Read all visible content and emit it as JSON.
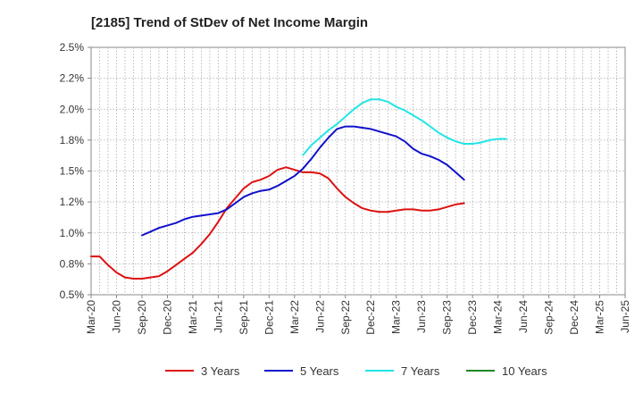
{
  "chart_data": {
    "type": "line",
    "title": "[2185]  Trend of StDev of Net Income Margin",
    "xlabel": "",
    "ylabel": "",
    "x": [
      "Mar-20",
      "Jun-20",
      "Sep-20",
      "Dec-20",
      "Mar-21",
      "Jun-21",
      "Sep-21",
      "Dec-21",
      "Mar-22",
      "Jun-22",
      "Sep-22",
      "Dec-22",
      "Mar-23",
      "Jun-23",
      "Sep-23",
      "Dec-23",
      "Mar-24",
      "Jun-24",
      "Sep-24",
      "Dec-24",
      "Mar-25",
      "Jun-25"
    ],
    "ylim": [
      0.5,
      2.5
    ],
    "yticks": [
      0.5,
      0.75,
      1.0,
      1.25,
      1.5,
      1.75,
      2.0,
      2.25,
      2.5
    ],
    "yticklabels": [
      "0.5%",
      "0.8%",
      "1.0%",
      "1.2%",
      "1.5%",
      "1.8%",
      "2.0%",
      "2.2%",
      "2.5%"
    ],
    "grid": true,
    "legend_position": "bottom",
    "series": [
      {
        "name": "3 Years",
        "color": "#dd1111",
        "points": [
          [
            0,
            0.81
          ],
          [
            1,
            0.81
          ],
          [
            2,
            0.74
          ],
          [
            3,
            0.68
          ],
          [
            4,
            0.64
          ],
          [
            5,
            0.63
          ],
          [
            6,
            0.63
          ],
          [
            7,
            0.64
          ],
          [
            8,
            0.65
          ],
          [
            9,
            0.69
          ],
          [
            10,
            0.74
          ],
          [
            11,
            0.79
          ],
          [
            12,
            0.84
          ],
          [
            13,
            0.91
          ],
          [
            14,
            0.99
          ],
          [
            15,
            1.09
          ],
          [
            16,
            1.2
          ],
          [
            17,
            1.28
          ],
          [
            18,
            1.36
          ],
          [
            19,
            1.41
          ],
          [
            20,
            1.43
          ],
          [
            21,
            1.46
          ],
          [
            22,
            1.51
          ],
          [
            23,
            1.53
          ],
          [
            24,
            1.51
          ],
          [
            25,
            1.49
          ],
          [
            26,
            1.49
          ],
          [
            27,
            1.48
          ],
          [
            28,
            1.44
          ],
          [
            29,
            1.36
          ],
          [
            30,
            1.29
          ],
          [
            31,
            1.24
          ],
          [
            32,
            1.2
          ],
          [
            33,
            1.18
          ],
          [
            34,
            1.17
          ],
          [
            35,
            1.17
          ],
          [
            36,
            1.18
          ],
          [
            37,
            1.19
          ],
          [
            38,
            1.19
          ],
          [
            39,
            1.18
          ],
          [
            40,
            1.18
          ],
          [
            41,
            1.19
          ],
          [
            42,
            1.21
          ],
          [
            43,
            1.23
          ],
          [
            44,
            1.24
          ]
        ]
      },
      {
        "name": "5 Years",
        "color": "#1111cc",
        "points": [
          [
            6,
            0.98
          ],
          [
            7,
            1.01
          ],
          [
            8,
            1.04
          ],
          [
            9,
            1.06
          ],
          [
            10,
            1.08
          ],
          [
            11,
            1.11
          ],
          [
            12,
            1.13
          ],
          [
            13,
            1.14
          ],
          [
            14,
            1.15
          ],
          [
            15,
            1.16
          ],
          [
            16,
            1.19
          ],
          [
            17,
            1.24
          ],
          [
            18,
            1.29
          ],
          [
            19,
            1.32
          ],
          [
            20,
            1.34
          ],
          [
            21,
            1.35
          ],
          [
            22,
            1.38
          ],
          [
            23,
            1.42
          ],
          [
            24,
            1.46
          ],
          [
            25,
            1.52
          ],
          [
            26,
            1.6
          ],
          [
            27,
            1.69
          ],
          [
            28,
            1.77
          ],
          [
            29,
            1.84
          ],
          [
            30,
            1.86
          ],
          [
            31,
            1.86
          ],
          [
            32,
            1.85
          ],
          [
            33,
            1.84
          ],
          [
            34,
            1.82
          ],
          [
            35,
            1.8
          ],
          [
            36,
            1.78
          ],
          [
            37,
            1.74
          ],
          [
            38,
            1.68
          ],
          [
            39,
            1.64
          ],
          [
            40,
            1.62
          ],
          [
            41,
            1.59
          ],
          [
            42,
            1.55
          ],
          [
            43,
            1.49
          ],
          [
            44,
            1.43
          ]
        ]
      },
      {
        "name": "7 Years",
        "color": "#22e5e5",
        "points": [
          [
            25,
            1.63
          ],
          [
            26,
            1.71
          ],
          [
            27,
            1.77
          ],
          [
            28,
            1.83
          ],
          [
            29,
            1.88
          ],
          [
            30,
            1.94
          ],
          [
            31,
            2.0
          ],
          [
            32,
            2.05
          ],
          [
            33,
            2.08
          ],
          [
            34,
            2.08
          ],
          [
            35,
            2.06
          ],
          [
            36,
            2.02
          ],
          [
            37,
            1.99
          ],
          [
            38,
            1.95
          ],
          [
            39,
            1.91
          ],
          [
            40,
            1.86
          ],
          [
            41,
            1.81
          ],
          [
            42,
            1.77
          ],
          [
            43,
            1.74
          ],
          [
            44,
            1.72
          ],
          [
            45,
            1.72
          ],
          [
            46,
            1.73
          ],
          [
            47,
            1.75
          ],
          [
            48,
            1.76
          ],
          [
            49,
            1.76
          ]
        ]
      },
      {
        "name": "10 Years",
        "color": "#228822",
        "points": []
      }
    ]
  }
}
